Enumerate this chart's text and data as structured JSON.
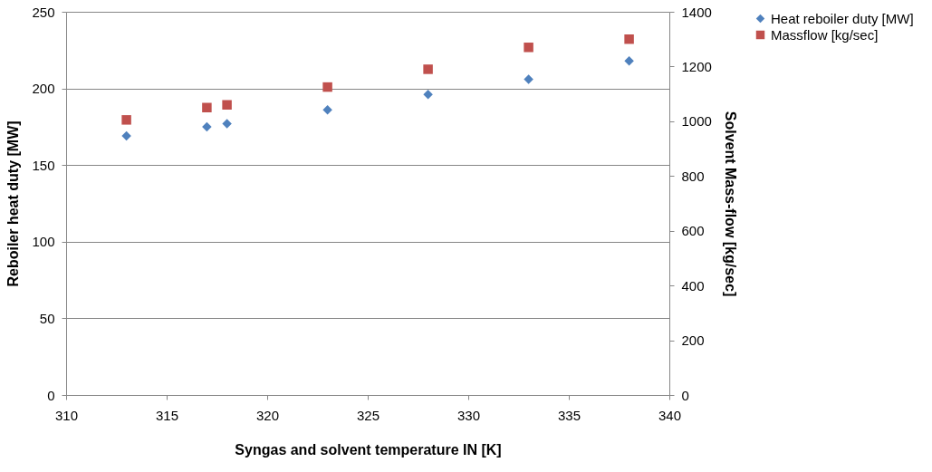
{
  "chart_data": {
    "type": "scatter",
    "xlabel": "Syngas and solvent temperature IN [K]",
    "ylabel": "Reboiler heat duty [MW]",
    "y2label": "Solvent Mass-flow [kg/sec]",
    "x": [
      313,
      317,
      318,
      323,
      328,
      333,
      338
    ],
    "series": [
      {
        "name": "Heat reboiler duty [MW]",
        "color": "#4f81bd",
        "marker": "diamond",
        "values": [
          169,
          175,
          177,
          186,
          196,
          206,
          218
        ]
      },
      {
        "name": "Massflow [kg/sec]",
        "color": "#c0504d",
        "marker": "square",
        "axis": "y2",
        "values": [
          1005,
          1050,
          1060,
          1125,
          1190,
          1270,
          1300
        ]
      }
    ],
    "xlim": [
      310,
      340
    ],
    "xticks": [
      310,
      315,
      320,
      325,
      330,
      335,
      340
    ],
    "ylim": [
      0,
      250
    ],
    "yticks": [
      0,
      50,
      100,
      150,
      200,
      250
    ],
    "y2lim": [
      0,
      1400
    ],
    "y2ticks": [
      0,
      200,
      400,
      600,
      800,
      1000,
      1200,
      1400
    ],
    "grid": "y",
    "legend": "right"
  }
}
